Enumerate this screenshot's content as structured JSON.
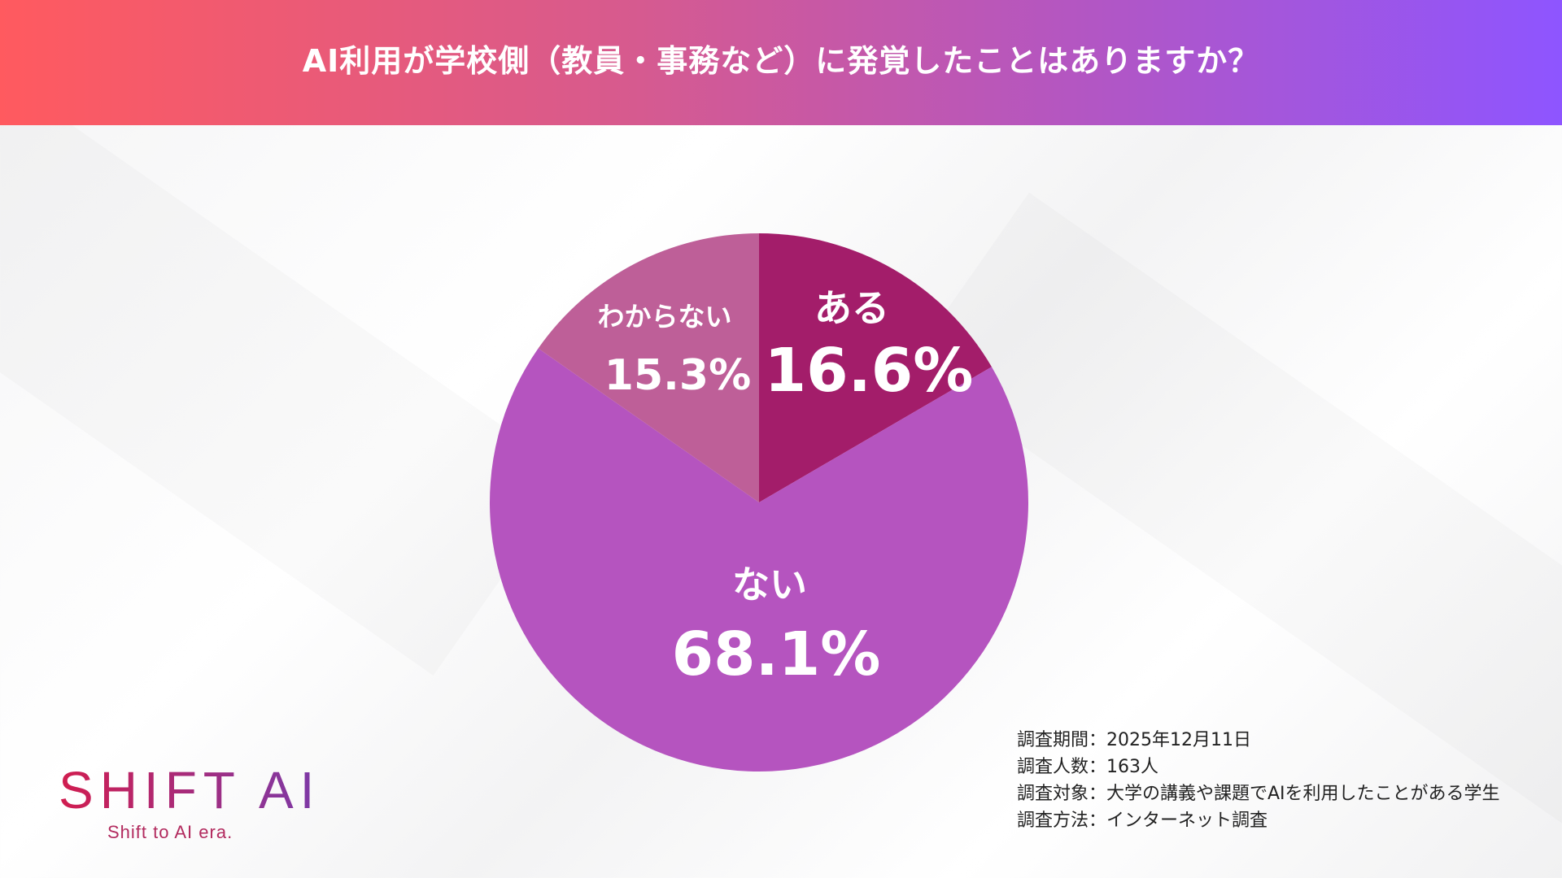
{
  "header": {
    "title": "AI利用が学校側（教員・事務など）に発覚したことはありますか？"
  },
  "chart_data": {
    "type": "pie",
    "title": "AI利用が学校側（教員・事務など）に発覚したことはありますか？",
    "categories": [
      "ある",
      "ない",
      "わからない"
    ],
    "values": [
      16.6,
      68.1,
      15.3
    ],
    "value_labels": [
      "16.6%",
      "68.1%",
      "15.3%"
    ],
    "colors": [
      "#A31D6A",
      "#B554BF",
      "#BE5F98"
    ],
    "start": "top, clockwise",
    "legend": "none (labels inside slices)"
  },
  "notes": [
    "調査期間：2025年12月11日",
    "調査人数：163人",
    "調査対象：大学の講義や課題でAIを利用したことがある学生",
    "調査方法：インターネット調査"
  ],
  "logo": {
    "main": "SHIFT AI",
    "tagline": "Shift to AI era."
  }
}
